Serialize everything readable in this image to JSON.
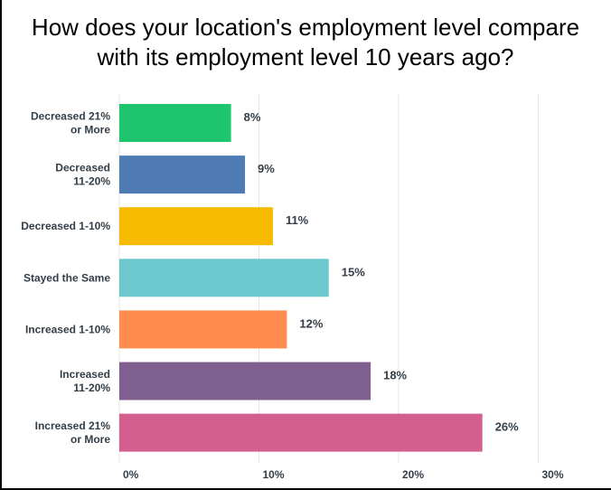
{
  "chart_data": {
    "type": "bar",
    "orientation": "horizontal",
    "title_lines": [
      "How does your location's employment level compare",
      "with its employment level 10 years ago?"
    ],
    "categories": [
      [
        "Decreased 21%",
        "or More"
      ],
      [
        "Decreased",
        "11-20%"
      ],
      [
        "Decreased 1-10%"
      ],
      [
        "Stayed the Same"
      ],
      [
        "Increased 1-10%"
      ],
      [
        "Increased",
        "11-20%"
      ],
      [
        "Increased 21%",
        "or More"
      ]
    ],
    "values": [
      8,
      9,
      11,
      15,
      12,
      18,
      26
    ],
    "value_labels": [
      "8%",
      "9%",
      "11%",
      "15%",
      "12%",
      "18%",
      "26%"
    ],
    "colors": [
      "#1ec46e",
      "#4e7bb4",
      "#f7bb01",
      "#6cc8cc",
      "#ff8b4e",
      "#7f5f8f",
      "#d45f8f"
    ],
    "xlim": [
      0,
      35
    ],
    "xticks": [
      0,
      10,
      20,
      30
    ],
    "xtick_labels": [
      "0%",
      "10%",
      "20%",
      "30%"
    ],
    "grid": true,
    "legend": "none"
  }
}
